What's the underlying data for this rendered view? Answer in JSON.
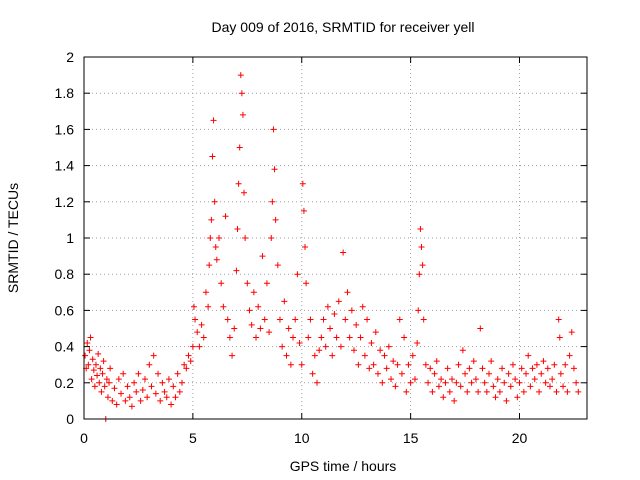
{
  "chart_data": {
    "type": "scatter",
    "title": "Day 009 of 2016, SRMTID for receiver yell",
    "xlabel": "GPS time / hours",
    "ylabel": "SRMTID / TECUs",
    "xlim": [
      0,
      23.1
    ],
    "ylim": [
      0,
      2
    ],
    "xticks": [
      0,
      5,
      10,
      15,
      20
    ],
    "yticks": [
      0,
      0.2,
      0.4,
      0.6,
      0.8,
      1,
      1.2,
      1.4,
      1.6,
      1.8,
      2
    ],
    "grid": true,
    "marker": "+",
    "color": "#ff0000",
    "series": [
      {
        "name": "SRMTID",
        "points": [
          [
            0.05,
            0.35
          ],
          [
            0.1,
            0.28
          ],
          [
            0.15,
            0.42
          ],
          [
            0.2,
            0.3
          ],
          [
            0.25,
            0.38
          ],
          [
            0.3,
            0.45
          ],
          [
            0.35,
            0.22
          ],
          [
            0.4,
            0.33
          ],
          [
            0.45,
            0.27
          ],
          [
            0.5,
            0.18
          ],
          [
            0.55,
            0.3
          ],
          [
            0.6,
            0.24
          ],
          [
            0.65,
            0.36
          ],
          [
            0.7,
            0.2
          ],
          [
            0.75,
            0.28
          ],
          [
            0.8,
            0.15
          ],
          [
            0.85,
            0.25
          ],
          [
            0.9,
            0.32
          ],
          [
            0.95,
            0.18
          ],
          [
            1.0,
            0.0
          ],
          [
            1.05,
            0.22
          ],
          [
            1.1,
            0.12
          ],
          [
            1.15,
            0.2
          ],
          [
            1.2,
            0.28
          ],
          [
            1.3,
            0.1
          ],
          [
            1.4,
            0.17
          ],
          [
            1.5,
            0.08
          ],
          [
            1.6,
            0.22
          ],
          [
            1.7,
            0.14
          ],
          [
            1.8,
            0.25
          ],
          [
            1.9,
            0.1
          ],
          [
            2.0,
            0.18
          ],
          [
            2.1,
            0.12
          ],
          [
            2.2,
            0.07
          ],
          [
            2.3,
            0.2
          ],
          [
            2.4,
            0.15
          ],
          [
            2.5,
            0.25
          ],
          [
            2.6,
            0.1
          ],
          [
            2.7,
            0.16
          ],
          [
            2.8,
            0.22
          ],
          [
            2.9,
            0.12
          ],
          [
            3.0,
            0.3
          ],
          [
            3.1,
            0.18
          ],
          [
            3.2,
            0.35
          ],
          [
            3.3,
            0.14
          ],
          [
            3.4,
            0.25
          ],
          [
            3.5,
            0.1
          ],
          [
            3.6,
            0.2
          ],
          [
            3.7,
            0.15
          ],
          [
            3.8,
            0.12
          ],
          [
            3.9,
            0.22
          ],
          [
            4.0,
            0.08
          ],
          [
            4.1,
            0.18
          ],
          [
            4.2,
            0.12
          ],
          [
            4.3,
            0.25
          ],
          [
            4.4,
            0.15
          ],
          [
            4.5,
            0.2
          ],
          [
            4.6,
            0.3
          ],
          [
            4.7,
            0.28
          ],
          [
            4.8,
            0.35
          ],
          [
            4.9,
            0.32
          ],
          [
            5.0,
            0.4
          ],
          [
            5.05,
            0.62
          ],
          [
            5.1,
            0.55
          ],
          [
            5.2,
            0.48
          ],
          [
            5.3,
            0.4
          ],
          [
            5.4,
            0.52
          ],
          [
            5.5,
            0.45
          ],
          [
            5.6,
            0.7
          ],
          [
            5.7,
            0.62
          ],
          [
            5.75,
            0.85
          ],
          [
            5.8,
            1.0
          ],
          [
            5.85,
            1.1
          ],
          [
            5.9,
            1.45
          ],
          [
            5.95,
            1.65
          ],
          [
            6.0,
            1.2
          ],
          [
            6.05,
            0.95
          ],
          [
            6.1,
            0.88
          ],
          [
            6.2,
            1.0
          ],
          [
            6.3,
            0.75
          ],
          [
            6.4,
            0.62
          ],
          [
            6.5,
            1.12
          ],
          [
            6.6,
            0.55
          ],
          [
            6.7,
            0.45
          ],
          [
            6.8,
            0.35
          ],
          [
            6.9,
            0.5
          ],
          [
            7.0,
            0.82
          ],
          [
            7.05,
            1.05
          ],
          [
            7.1,
            1.3
          ],
          [
            7.15,
            1.5
          ],
          [
            7.2,
            1.9
          ],
          [
            7.25,
            1.8
          ],
          [
            7.3,
            1.68
          ],
          [
            7.35,
            1.25
          ],
          [
            7.4,
            1.0
          ],
          [
            7.5,
            0.75
          ],
          [
            7.6,
            0.6
          ],
          [
            7.7,
            0.52
          ],
          [
            7.8,
            0.7
          ],
          [
            7.9,
            0.45
          ],
          [
            8.0,
            0.62
          ],
          [
            8.1,
            0.5
          ],
          [
            8.2,
            0.9
          ],
          [
            8.3,
            0.55
          ],
          [
            8.4,
            0.75
          ],
          [
            8.5,
            0.48
          ],
          [
            8.6,
            1.0
          ],
          [
            8.65,
            1.2
          ],
          [
            8.7,
            1.6
          ],
          [
            8.75,
            1.38
          ],
          [
            8.8,
            1.1
          ],
          [
            8.9,
            0.85
          ],
          [
            9.0,
            0.55
          ],
          [
            9.1,
            0.4
          ],
          [
            9.2,
            0.65
          ],
          [
            9.3,
            0.35
          ],
          [
            9.4,
            0.5
          ],
          [
            9.5,
            0.3
          ],
          [
            9.6,
            0.45
          ],
          [
            9.7,
            0.55
          ],
          [
            9.8,
            0.8
          ],
          [
            9.9,
            0.42
          ],
          [
            10.0,
            0.3
          ],
          [
            10.05,
            1.3
          ],
          [
            10.1,
            1.15
          ],
          [
            10.15,
            0.95
          ],
          [
            10.2,
            0.75
          ],
          [
            10.3,
            0.45
          ],
          [
            10.4,
            0.55
          ],
          [
            10.5,
            0.25
          ],
          [
            10.6,
            0.35
          ],
          [
            10.7,
            0.2
          ],
          [
            10.8,
            0.38
          ],
          [
            10.9,
            0.45
          ],
          [
            11.0,
            0.55
          ],
          [
            11.1,
            0.4
          ],
          [
            11.2,
            0.62
          ],
          [
            11.3,
            0.5
          ],
          [
            11.4,
            0.35
          ],
          [
            11.5,
            0.58
          ],
          [
            11.6,
            0.45
          ],
          [
            11.7,
            0.65
          ],
          [
            11.8,
            0.4
          ],
          [
            11.9,
            0.92
          ],
          [
            12.0,
            0.55
          ],
          [
            12.1,
            0.7
          ],
          [
            12.2,
            0.45
          ],
          [
            12.3,
            0.6
          ],
          [
            12.4,
            0.38
          ],
          [
            12.5,
            0.52
          ],
          [
            12.6,
            0.3
          ],
          [
            12.7,
            0.45
          ],
          [
            12.8,
            0.62
          ],
          [
            12.9,
            0.35
          ],
          [
            13.0,
            0.55
          ],
          [
            13.1,
            0.28
          ],
          [
            13.2,
            0.42
          ],
          [
            13.3,
            0.3
          ],
          [
            13.4,
            0.48
          ],
          [
            13.5,
            0.25
          ],
          [
            13.6,
            0.38
          ],
          [
            13.7,
            0.2
          ],
          [
            13.8,
            0.35
          ],
          [
            13.9,
            0.28
          ],
          [
            14.0,
            0.4
          ],
          [
            14.1,
            0.22
          ],
          [
            14.2,
            0.32
          ],
          [
            14.3,
            0.18
          ],
          [
            14.4,
            0.3
          ],
          [
            14.5,
            0.55
          ],
          [
            14.6,
            0.25
          ],
          [
            14.7,
            0.45
          ],
          [
            14.8,
            0.15
          ],
          [
            14.9,
            0.3
          ],
          [
            15.0,
            0.2
          ],
          [
            15.1,
            0.35
          ],
          [
            15.2,
            0.22
          ],
          [
            15.3,
            0.42
          ],
          [
            15.35,
            0.6
          ],
          [
            15.4,
            0.8
          ],
          [
            15.45,
            1.05
          ],
          [
            15.5,
            0.95
          ],
          [
            15.55,
            0.85
          ],
          [
            15.6,
            0.55
          ],
          [
            15.7,
            0.3
          ],
          [
            15.8,
            0.2
          ],
          [
            15.9,
            0.28
          ],
          [
            16.0,
            0.15
          ],
          [
            16.1,
            0.25
          ],
          [
            16.2,
            0.32
          ],
          [
            16.3,
            0.18
          ],
          [
            16.4,
            0.22
          ],
          [
            16.5,
            0.12
          ],
          [
            16.6,
            0.2
          ],
          [
            16.7,
            0.28
          ],
          [
            16.8,
            0.15
          ],
          [
            16.9,
            0.22
          ],
          [
            17.0,
            0.1
          ],
          [
            17.1,
            0.2
          ],
          [
            17.2,
            0.3
          ],
          [
            17.3,
            0.18
          ],
          [
            17.4,
            0.38
          ],
          [
            17.5,
            0.25
          ],
          [
            17.6,
            0.15
          ],
          [
            17.7,
            0.28
          ],
          [
            17.8,
            0.2
          ],
          [
            17.9,
            0.32
          ],
          [
            18.0,
            0.22
          ],
          [
            18.1,
            0.15
          ],
          [
            18.2,
            0.5
          ],
          [
            18.3,
            0.28
          ],
          [
            18.4,
            0.2
          ],
          [
            18.5,
            0.15
          ],
          [
            18.6,
            0.25
          ],
          [
            18.7,
            0.32
          ],
          [
            18.8,
            0.18
          ],
          [
            18.9,
            0.12
          ],
          [
            19.0,
            0.22
          ],
          [
            19.1,
            0.15
          ],
          [
            19.2,
            0.28
          ],
          [
            19.3,
            0.2
          ],
          [
            19.4,
            0.1
          ],
          [
            19.5,
            0.25
          ],
          [
            19.6,
            0.18
          ],
          [
            19.7,
            0.3
          ],
          [
            19.8,
            0.22
          ],
          [
            19.9,
            0.12
          ],
          [
            20.0,
            0.2
          ],
          [
            20.1,
            0.28
          ],
          [
            20.2,
            0.15
          ],
          [
            20.3,
            0.25
          ],
          [
            20.4,
            0.35
          ],
          [
            20.5,
            0.18
          ],
          [
            20.6,
            0.28
          ],
          [
            20.7,
            0.22
          ],
          [
            20.8,
            0.3
          ],
          [
            20.9,
            0.15
          ],
          [
            21.0,
            0.25
          ],
          [
            21.1,
            0.32
          ],
          [
            21.2,
            0.2
          ],
          [
            21.3,
            0.28
          ],
          [
            21.4,
            0.18
          ],
          [
            21.5,
            0.22
          ],
          [
            21.6,
            0.3
          ],
          [
            21.7,
            0.15
          ],
          [
            21.8,
            0.55
          ],
          [
            21.85,
            0.45
          ],
          [
            21.9,
            0.25
          ],
          [
            22.0,
            0.18
          ],
          [
            22.1,
            0.3
          ],
          [
            22.2,
            0.15
          ],
          [
            22.3,
            0.35
          ],
          [
            22.4,
            0.48
          ],
          [
            22.5,
            0.28
          ],
          [
            22.6,
            0.2
          ],
          [
            22.7,
            0.15
          ]
        ]
      }
    ]
  }
}
